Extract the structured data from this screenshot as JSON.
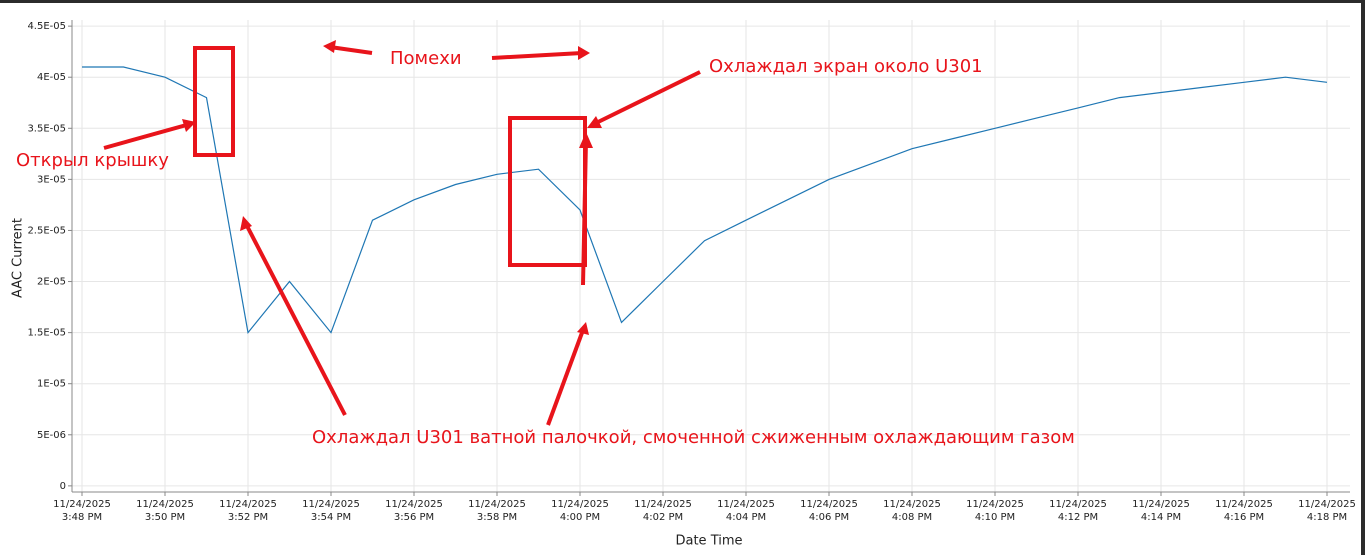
{
  "chart_data": {
    "type": "line",
    "y_label": "AAC Current",
    "x_label": "Date Time",
    "x": [
      "2025-11-24T15:48",
      "2025-11-24T15:49",
      "2025-11-24T15:50",
      "2025-11-24T15:51",
      "2025-11-24T15:52",
      "2025-11-24T15:53",
      "2025-11-24T15:54",
      "2025-11-24T15:55",
      "2025-11-24T15:56",
      "2025-11-24T15:57",
      "2025-11-24T15:58",
      "2025-11-24T15:59",
      "2025-11-24T16:00",
      "2025-11-24T16:01",
      "2025-11-24T16:02",
      "2025-11-24T16:03",
      "2025-11-24T16:04",
      "2025-11-24T16:05",
      "2025-11-24T16:06",
      "2025-11-24T16:07",
      "2025-11-24T16:08",
      "2025-11-24T16:09",
      "2025-11-24T16:10",
      "2025-11-24T16:11",
      "2025-11-24T16:12",
      "2025-11-24T16:13",
      "2025-11-24T16:14",
      "2025-11-24T16:15",
      "2025-11-24T16:16",
      "2025-11-24T16:17",
      "2025-11-24T16:18"
    ],
    "series": [
      {
        "name": "AAC Current",
        "color": "#1f77b4",
        "values": [
          4.1e-05,
          4.1e-05,
          4e-05,
          3.8e-05,
          1.5e-05,
          2e-05,
          1.5e-05,
          2.6e-05,
          2.8e-05,
          2.95e-05,
          3.05e-05,
          3.1e-05,
          2.7e-05,
          1.6e-05,
          2e-05,
          2.4e-05,
          2.6e-05,
          2.8e-05,
          3e-05,
          3.15e-05,
          3.3e-05,
          3.4e-05,
          3.5e-05,
          3.6e-05,
          3.7e-05,
          3.8e-05,
          3.85e-05,
          3.9e-05,
          3.95e-05,
          4e-05,
          3.95e-05
        ]
      }
    ],
    "xlim": [
      "2025-11-24T15:48",
      "2025-11-24T16:18"
    ],
    "xticks": [
      {
        "value": "2025-11-24T15:48",
        "label": "11/24/2025 3:48 PM"
      },
      {
        "value": "2025-11-24T15:50",
        "label": "11/24/2025 3:50 PM"
      },
      {
        "value": "2025-11-24T15:52",
        "label": "11/24/2025 3:52 PM"
      },
      {
        "value": "2025-11-24T15:54",
        "label": "11/24/2025 3:54 PM"
      },
      {
        "value": "2025-11-24T15:56",
        "label": "11/24/2025 3:56 PM"
      },
      {
        "value": "2025-11-24T15:58",
        "label": "11/24/2025 3:58 PM"
      },
      {
        "value": "2025-11-24T16:00",
        "label": "11/24/2025 4:00 PM"
      },
      {
        "value": "2025-11-24T16:02",
        "label": "11/24/2025 4:02 PM"
      },
      {
        "value": "2025-11-24T16:04",
        "label": "11/24/2025 4:04 PM"
      },
      {
        "value": "2025-11-24T16:06",
        "label": "11/24/2025 4:06 PM"
      },
      {
        "value": "2025-11-24T16:08",
        "label": "11/24/2025 4:08 PM"
      },
      {
        "value": "2025-11-24T16:10",
        "label": "11/24/2025 4:10 PM"
      },
      {
        "value": "2025-11-24T16:12",
        "label": "11/24/2025 4:12 PM"
      },
      {
        "value": "2025-11-24T16:14",
        "label": "11/24/2025 4:14 PM"
      },
      {
        "value": "2025-11-24T16:16",
        "label": "11/24/2025 4:16 PM"
      },
      {
        "value": "2025-11-24T16:18",
        "label": "11/24/2025 4:18 PM"
      }
    ],
    "ylim": [
      -6e-07,
      4.56e-05
    ],
    "yticks": [
      0,
      {
        "value": 5e-06,
        "label": "5E-06"
      },
      {
        "value": 1e-05,
        "label": "1E-05"
      },
      {
        "value": 1.5e-05,
        "label": "1.5E-05"
      },
      {
        "value": 2e-05,
        "label": "2E-05"
      },
      {
        "value": 2.5e-05,
        "label": "2.5E-05"
      },
      {
        "value": 3e-05,
        "label": "3E-05"
      },
      {
        "value": 3.5e-05,
        "label": "3.5E-05"
      },
      {
        "value": 4e-05,
        "label": "4E-05"
      },
      {
        "value": 4.5e-05,
        "label": "4.5E-05"
      }
    ],
    "grid": true,
    "annotations": [
      "Помехи",
      "Охлаждал экран около U301",
      "Открыл крышку",
      "Охлаждал U301 ватной палочкой, смоченной сжиженным охлаждающим газом"
    ]
  }
}
